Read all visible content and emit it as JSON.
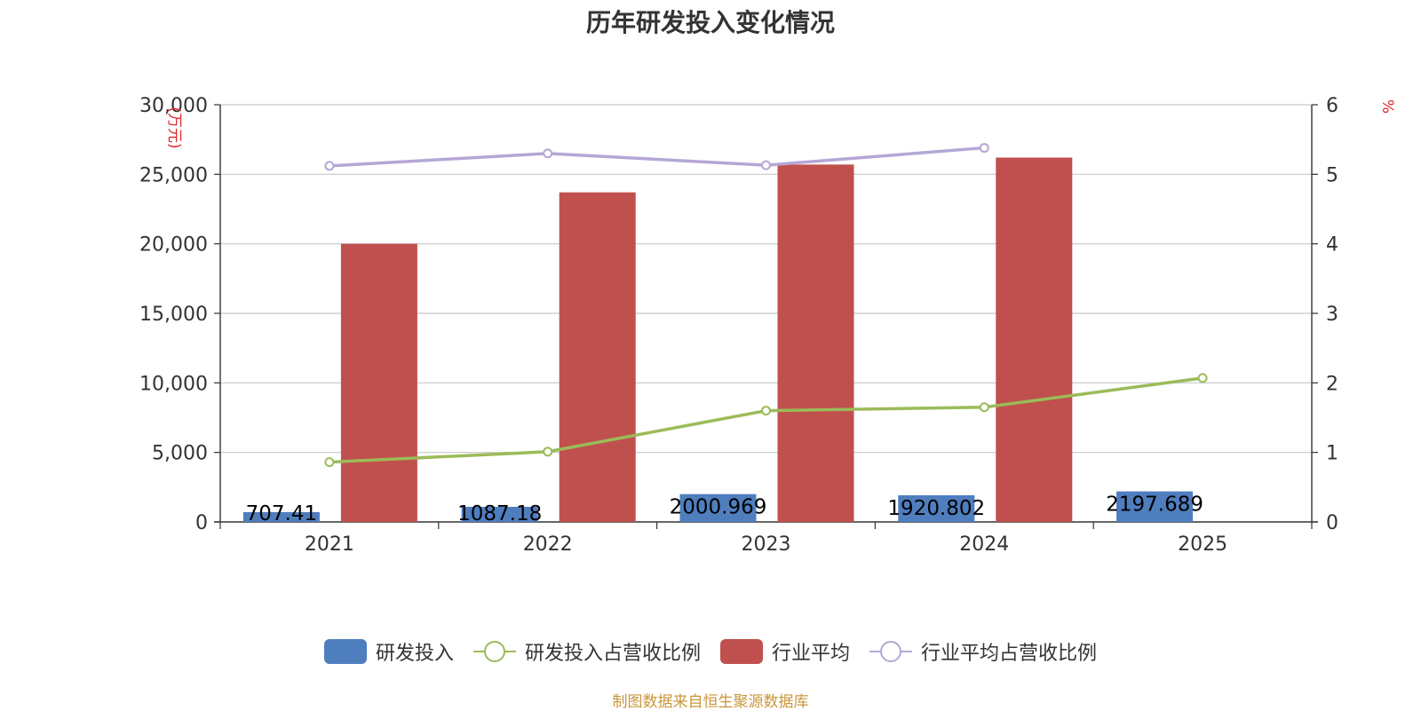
{
  "title": "历年研发投入变化情况",
  "footer": "制图数据来自恒生聚源数据库",
  "colors": {
    "rd": "#4f7ebf",
    "rd_ratio": "#9bbb59",
    "industry": "#c0504d",
    "industry_ratio": "#b4a7d6",
    "unit": "#e0262b",
    "axis": "#333333",
    "grid": "#c8c8c8"
  },
  "legend": [
    {
      "label": "研发投入",
      "kind": "bar",
      "color": "#4f7ebf"
    },
    {
      "label": "研发投入占营收比例",
      "kind": "line",
      "color": "#9bbb59"
    },
    {
      "label": "行业平均",
      "kind": "bar",
      "color": "#c0504d"
    },
    {
      "label": "行业平均占营收比例",
      "kind": "line",
      "color": "#b4a7d6"
    }
  ],
  "chart_data": {
    "type": "bar",
    "title": "历年研发投入变化情况",
    "categories": [
      "2021",
      "2022",
      "2023",
      "2024",
      "2025"
    ],
    "y_left": {
      "unit": "万元",
      "ylim": [
        0,
        30000
      ],
      "ticks": [
        0,
        5000,
        10000,
        15000,
        20000,
        25000,
        30000
      ],
      "tick_labels": [
        "0",
        "5,000",
        "10,000",
        "15,000",
        "20,000",
        "25,000",
        "30,000"
      ]
    },
    "y_right": {
      "unit": "%",
      "ylim": [
        0,
        6
      ],
      "ticks": [
        0,
        1,
        2,
        3,
        4,
        5,
        6
      ],
      "tick_labels": [
        "0",
        "1",
        "2",
        "3",
        "4",
        "5",
        "6"
      ]
    },
    "grid": true,
    "legend_position": "bottom",
    "series": [
      {
        "name": "研发投入",
        "type": "bar",
        "axis": "left",
        "values": [
          707.41,
          1087.18,
          2000.969,
          1920.802,
          2197.689
        ],
        "labels": [
          "707.41",
          "1087.18",
          "2000.969",
          "1920.802",
          "2197.689"
        ]
      },
      {
        "name": "行业平均",
        "type": "bar",
        "axis": "left",
        "values": [
          20000,
          23700,
          25700,
          26200,
          null
        ]
      },
      {
        "name": "研发投入占营收比例",
        "type": "line",
        "axis": "right",
        "values": [
          0.86,
          1.01,
          1.6,
          1.65,
          2.07
        ]
      },
      {
        "name": "行业平均占营收比例",
        "type": "line",
        "axis": "right",
        "values": [
          5.12,
          5.3,
          5.13,
          5.38,
          null
        ]
      }
    ]
  }
}
